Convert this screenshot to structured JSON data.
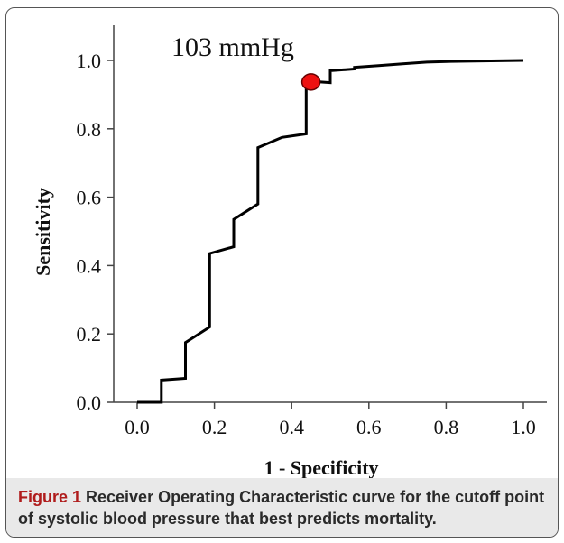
{
  "chart_data": {
    "type": "line",
    "xlabel": "1 - Specificity",
    "ylabel": "Sensitivity",
    "xlim": [
      0.0,
      1.0
    ],
    "ylim": [
      0.0,
      1.0
    ],
    "xticks": [
      "0.0",
      "0.2",
      "0.4",
      "0.6",
      "0.8",
      "1.0"
    ],
    "yticks": [
      "0.0",
      "0.2",
      "0.4",
      "0.6",
      "0.8",
      "1.0"
    ],
    "grid": false,
    "step_points": [
      [
        0.0,
        0.0
      ],
      [
        0.0625,
        0.0
      ],
      [
        0.0625,
        0.065
      ],
      [
        0.125,
        0.07
      ],
      [
        0.125,
        0.175
      ],
      [
        0.1875,
        0.22
      ],
      [
        0.1875,
        0.435
      ],
      [
        0.25,
        0.455
      ],
      [
        0.25,
        0.535
      ],
      [
        0.3125,
        0.58
      ],
      [
        0.3125,
        0.745
      ],
      [
        0.375,
        0.775
      ],
      [
        0.4375,
        0.785
      ],
      [
        0.4375,
        0.94
      ],
      [
        0.5,
        0.935
      ],
      [
        0.5,
        0.97
      ],
      [
        0.5625,
        0.975
      ],
      [
        0.5625,
        0.98
      ],
      [
        0.625,
        0.985
      ],
      [
        0.6875,
        0.99
      ],
      [
        0.75,
        0.995
      ],
      [
        0.8125,
        0.997
      ],
      [
        1.0,
        1.0
      ]
    ],
    "highlight_point": {
      "x": 0.45,
      "y": 0.937,
      "color": "#ee1111",
      "label": "103 mmHg"
    },
    "line_color": "#000000"
  },
  "caption": {
    "label": "Figure 1",
    "text": " Receiver Operating Characteristic curve for the cutoff point of systolic blood pressure that best predicts mortality."
  }
}
